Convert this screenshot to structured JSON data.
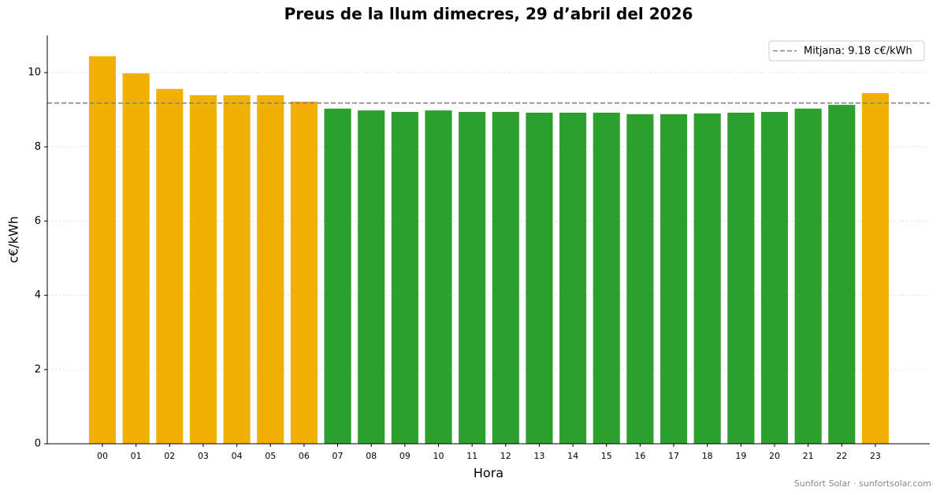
{
  "chart_data": {
    "type": "bar",
    "title": "Preus de la llum dimecres, 29 d’abril del 2026",
    "x_label": "Hora",
    "y_label": "c€/kWh",
    "categories": [
      "00",
      "01",
      "02",
      "03",
      "04",
      "05",
      "06",
      "07",
      "08",
      "09",
      "10",
      "11",
      "12",
      "13",
      "14",
      "15",
      "16",
      "17",
      "18",
      "19",
      "20",
      "21",
      "22",
      "23"
    ],
    "values": [
      10.44,
      9.98,
      9.56,
      9.39,
      9.39,
      9.39,
      9.22,
      9.03,
      8.98,
      8.94,
      8.98,
      8.94,
      8.94,
      8.92,
      8.92,
      8.92,
      8.88,
      8.88,
      8.9,
      8.92,
      8.94,
      9.03,
      9.13,
      9.45
    ],
    "colors": {
      "above": "#f0b004",
      "below": "#2ca02c"
    },
    "average": 9.18,
    "average_label": "Mitjana: 9.18 c€/kWh",
    "average_color": "#808080",
    "ylim": [
      0,
      11
    ],
    "yticks": [
      0,
      2,
      4,
      6,
      8,
      10
    ],
    "grid": true,
    "legend": "upper right",
    "footer": "Sunfort Solar · sunfortsolar.com"
  }
}
